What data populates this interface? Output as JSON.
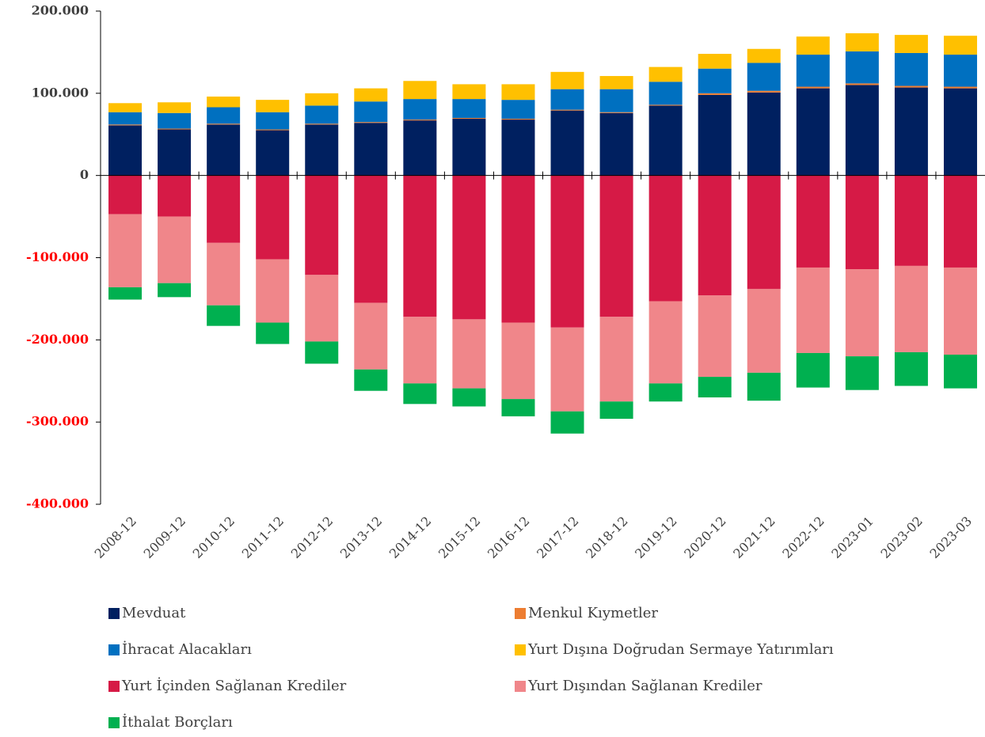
{
  "chart_data": {
    "type": "stacked_bar",
    "categories": [
      "2008-12",
      "2009-12",
      "2010-12",
      "2011-12",
      "2012-12",
      "2013-12",
      "2014-12",
      "2015-12",
      "2016-12",
      "2017-12",
      "2018-12",
      "2019-12",
      "2020-12",
      "2021-12",
      "2022-12",
      "2023-01",
      "2023-02",
      "2023-03"
    ],
    "series": [
      {
        "name": "Mevduat",
        "color": "#002060",
        "values": [
          61000,
          56000,
          62000,
          55000,
          62000,
          64000,
          67000,
          69000,
          68000,
          79000,
          76000,
          85000,
          98000,
          101000,
          106000,
          110000,
          107000,
          106000
        ]
      },
      {
        "name": "Menkul Kıymetler",
        "color": "#ed7d31",
        "values": [
          1000,
          1000,
          1000,
          1000,
          1000,
          1000,
          1000,
          1000,
          1000,
          1000,
          1000,
          1000,
          2000,
          2000,
          2000,
          2000,
          2000,
          2000
        ]
      },
      {
        "name": "İhracat Alacakları",
        "color": "#0070c0",
        "values": [
          15000,
          19000,
          20000,
          21000,
          22000,
          25000,
          25000,
          23000,
          23000,
          25000,
          28000,
          28000,
          30000,
          34000,
          39000,
          39000,
          40000,
          39000
        ]
      },
      {
        "name": "Yurt Dışına Doğrudan Sermaye Yatırımları",
        "color": "#ffc000",
        "values": [
          11000,
          13000,
          13000,
          15000,
          15000,
          16000,
          22000,
          18000,
          19000,
          21000,
          16000,
          18000,
          18000,
          17000,
          22000,
          22000,
          22000,
          23000
        ]
      },
      {
        "name": "Yurt İçinden Sağlanan Krediler",
        "color": "#d61a46",
        "values": [
          -47000,
          -50000,
          -82000,
          -102000,
          -121000,
          -155000,
          -172000,
          -175000,
          -179000,
          -185000,
          -172000,
          -153000,
          -146000,
          -138000,
          -112000,
          -114000,
          -110000,
          -112000
        ]
      },
      {
        "name": "Yurt Dışından Sağlanan Krediler",
        "color": "#f0868a",
        "values": [
          -89000,
          -81000,
          -76000,
          -77000,
          -81000,
          -81000,
          -81000,
          -84000,
          -93000,
          -102000,
          -103000,
          -100000,
          -99000,
          -102000,
          -104000,
          -106000,
          -105000,
          -106000
        ]
      },
      {
        "name": "İthalat Borçları",
        "color": "#00b050",
        "values": [
          -15000,
          -17000,
          -25000,
          -26000,
          -27000,
          -26000,
          -25000,
          -22000,
          -21000,
          -27000,
          -21000,
          -22000,
          -25000,
          -34000,
          -42000,
          -41000,
          -41000,
          -41000
        ]
      }
    ],
    "ylim": [
      -400000,
      200000
    ],
    "yticks": [
      {
        "value": 200000,
        "label": "200.000"
      },
      {
        "value": 100000,
        "label": "100.000"
      },
      0,
      {
        "value": -100000,
        "label": "-100.000"
      },
      {
        "value": -200000,
        "label": "-200.000"
      },
      {
        "value": -300000,
        "label": "-300.000"
      },
      {
        "value": -400000,
        "label": "-400.000"
      }
    ]
  }
}
